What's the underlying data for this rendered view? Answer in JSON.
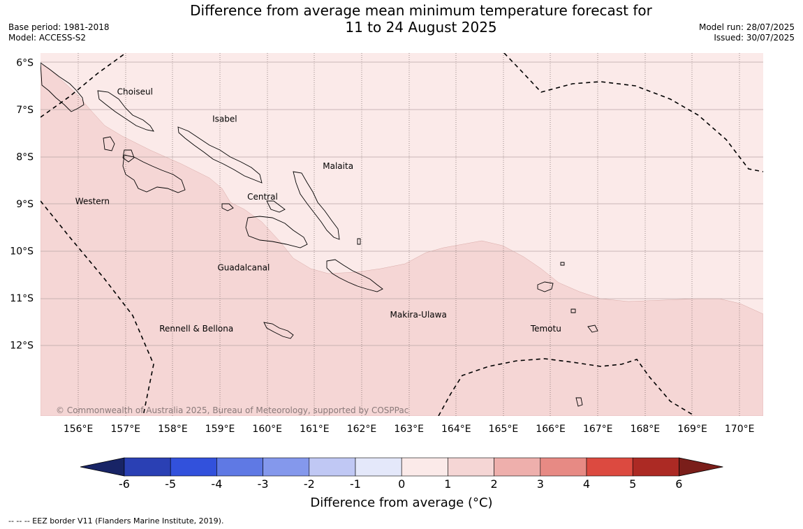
{
  "title": {
    "line1": "Difference from average mean minimum temperature forecast for",
    "line2": "11 to 24 August 2025"
  },
  "meta": {
    "base_period": "Base period: 1981-2018",
    "model": "Model: ACCESS-S2",
    "model_run": "Model run: 28/07/2025",
    "issued": "Issued: 30/07/2025"
  },
  "map": {
    "lon_range": [
      155.2,
      170.5
    ],
    "lat_range": [
      -13.5,
      -5.8
    ],
    "lon_ticks": [
      156,
      157,
      158,
      159,
      160,
      161,
      162,
      163,
      164,
      165,
      166,
      167,
      168,
      169,
      170
    ],
    "lon_labels": [
      "156°E",
      "157°E",
      "158°E",
      "159°E",
      "160°E",
      "161°E",
      "162°E",
      "163°E",
      "164°E",
      "165°E",
      "166°E",
      "167°E",
      "168°E",
      "169°E",
      "170°E"
    ],
    "lat_ticks": [
      -6,
      -7,
      -8,
      -9,
      -10,
      -11,
      -12
    ],
    "lat_labels": [
      "6°S",
      "7°S",
      "8°S",
      "9°S",
      "10°S",
      "11°S",
      "12°S"
    ],
    "anomaly_colors": {
      "1_to_2": "#f5d6d5",
      "0_to_1": "#fbeae9"
    },
    "places": [
      {
        "name": "Choiseul",
        "lon": 157.2,
        "lat": -6.62
      },
      {
        "name": "Isabel",
        "lon": 159.1,
        "lat": -7.2
      },
      {
        "name": "Malaita",
        "lon": 161.5,
        "lat": -8.2
      },
      {
        "name": "Western",
        "lon": 156.3,
        "lat": -8.95
      },
      {
        "name": "Central",
        "lon": 159.9,
        "lat": -8.85
      },
      {
        "name": "Guadalcanal",
        "lon": 159.5,
        "lat": -10.35
      },
      {
        "name": "Makira-Ulawa",
        "lon": 163.2,
        "lat": -11.35
      },
      {
        "name": "Rennell & Bellona",
        "lon": 158.5,
        "lat": -11.65
      },
      {
        "name": "Temotu",
        "lon": 165.9,
        "lat": -11.65
      }
    ],
    "copyright": "© Commonwealth of Australia 2025, Bureau of Meteorology, supported by COSPPac"
  },
  "colorbar": {
    "colors": [
      "#26348c",
      "#2a40b4",
      "#3251dc",
      "#5f79e4",
      "#8498ec",
      "#c0c8f4",
      "#e4e8fa",
      "#fbeae9",
      "#f5d6d5",
      "#eeafac",
      "#e78a84",
      "#dc4a40",
      "#ac2a24"
    ],
    "under_color": "#182466",
    "over_color": "#7a1e1a",
    "labels": [
      "-6",
      "-5",
      "-4",
      "-3",
      "-2",
      "-1",
      "0",
      "1",
      "2",
      "3",
      "4",
      "5",
      "6"
    ],
    "title": "Difference from average (°C)"
  },
  "footnote": "-- -- -- EEZ border V11 (Flanders Marine Institute, 2019)."
}
